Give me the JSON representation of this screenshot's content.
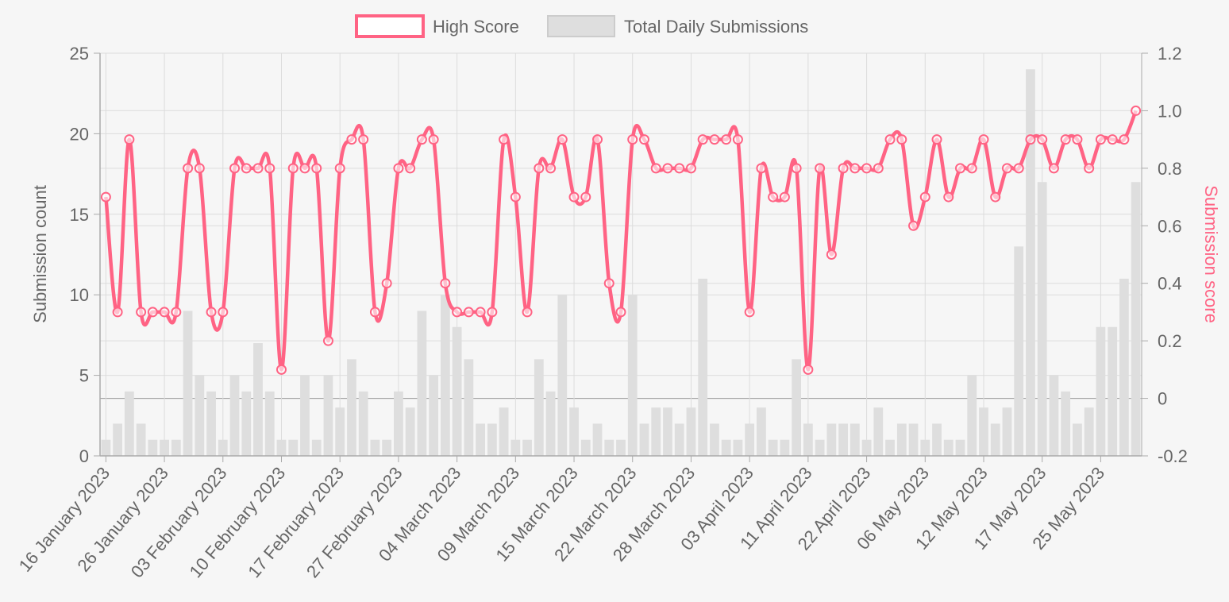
{
  "chart_data": {
    "type": "bar",
    "colors": {
      "high_score": "#ff6384",
      "bars": "#dedede",
      "bar_border": "#d0d0d0",
      "grid": "#dcdcdc",
      "axis": "#aaaaaa",
      "tick_text": "#666666"
    },
    "legend": {
      "position": "top",
      "items": [
        "High Score",
        "Total Daily Submissions"
      ]
    },
    "y_left": {
      "label": "Submission count",
      "min": 0,
      "max": 25,
      "ticks": [
        0,
        5,
        10,
        15,
        20,
        25
      ]
    },
    "y_right": {
      "label": "Submission score",
      "min": -0.2,
      "max": 1.2,
      "ticks": [
        "-0.2",
        "0",
        "0.2",
        "0.4",
        "0.6",
        "0.8",
        "1.0",
        "1.2"
      ]
    },
    "x_tick_labels": [
      "16 January 2023",
      "26 January 2023",
      "03 February 2023",
      "10 February 2023",
      "17 February 2023",
      "27 February 2023",
      "04 March 2023",
      "09 March 2023",
      "15 March 2023",
      "22 March 2023",
      "28 March 2023",
      "03 April 2023",
      "11 April 2023",
      "22 April 2023",
      "06 May 2023",
      "12 May 2023",
      "17 May 2023",
      "25 May 2023"
    ],
    "x_tick_every": 5,
    "grid": true,
    "series": [
      {
        "name": "Total Daily Submissions",
        "type": "bar",
        "axis": "left",
        "values": [
          1,
          2,
          4,
          2,
          1,
          1,
          1,
          9,
          5,
          4,
          1,
          5,
          4,
          7,
          4,
          1,
          1,
          5,
          1,
          5,
          3,
          6,
          4,
          1,
          1,
          4,
          3,
          9,
          5,
          10,
          8,
          6,
          2,
          2,
          3,
          1,
          1,
          6,
          4,
          10,
          3,
          1,
          2,
          1,
          1,
          10,
          2,
          3,
          3,
          2,
          3,
          11,
          2,
          1,
          1,
          2,
          3,
          1,
          1,
          6,
          2,
          1,
          2,
          2,
          2,
          1,
          3,
          1,
          2,
          2,
          1,
          2,
          1,
          1,
          5,
          3,
          2,
          3,
          13,
          24,
          17,
          5,
          4,
          2,
          3,
          8,
          8,
          11,
          17
        ]
      },
      {
        "name": "High Score",
        "type": "line",
        "axis": "right",
        "values": [
          0.7,
          0.3,
          0.9,
          0.3,
          0.3,
          0.3,
          0.3,
          0.8,
          0.8,
          0.3,
          0.3,
          0.8,
          0.8,
          0.8,
          0.8,
          0.1,
          0.8,
          0.8,
          0.8,
          0.2,
          0.8,
          0.9,
          0.9,
          0.3,
          0.4,
          0.8,
          0.8,
          0.9,
          0.9,
          0.4,
          0.3,
          0.3,
          0.3,
          0.3,
          0.9,
          0.7,
          0.3,
          0.8,
          0.8,
          0.9,
          0.7,
          0.7,
          0.9,
          0.4,
          0.3,
          0.9,
          0.9,
          0.8,
          0.8,
          0.8,
          0.8,
          0.9,
          0.9,
          0.9,
          0.9,
          0.3,
          0.8,
          0.7,
          0.7,
          0.8,
          0.1,
          0.8,
          0.5,
          0.8,
          0.8,
          0.8,
          0.8,
          0.9,
          0.9,
          0.6,
          0.7,
          0.9,
          0.7,
          0.8,
          0.8,
          0.9,
          0.7,
          0.8,
          0.8,
          0.9,
          0.9,
          0.8,
          0.9,
          0.9,
          0.8,
          0.9,
          0.9,
          0.9,
          1.0
        ]
      }
    ]
  }
}
